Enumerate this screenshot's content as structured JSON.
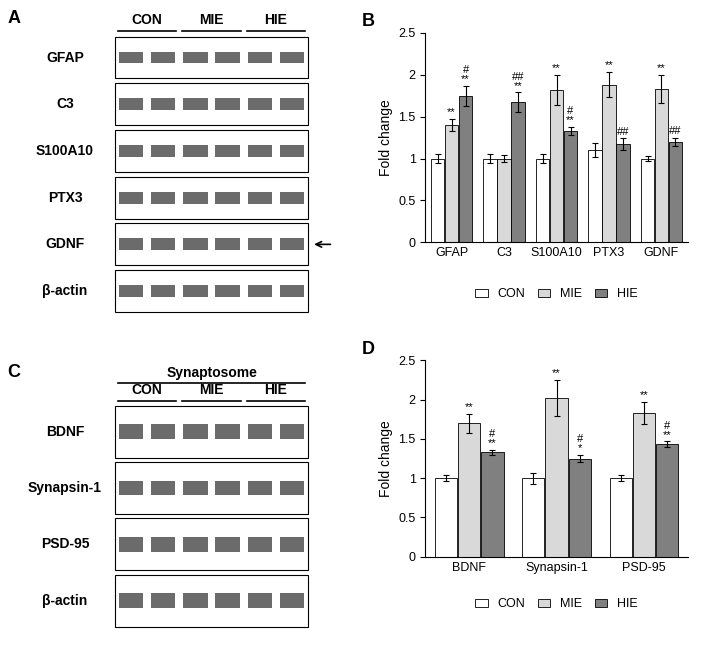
{
  "chart_data": [
    {
      "type": "bar",
      "panel": "B",
      "ylabel": "Fold change",
      "categories": [
        "GFAP",
        "C3",
        "S100A10",
        "PTX3",
        "GDNF"
      ],
      "ylim": [
        0,
        2.5
      ],
      "yticks": [
        0,
        0.5,
        1,
        1.5,
        2,
        2.5
      ],
      "legend": "lower center",
      "series": [
        {
          "name": "CON",
          "color": "#ffffff",
          "values": [
            1.0,
            1.0,
            1.0,
            1.1,
            1.0
          ],
          "errors": [
            0.05,
            0.05,
            0.05,
            0.08,
            0.03
          ],
          "marks": [
            null,
            null,
            null,
            null,
            null
          ]
        },
        {
          "name": "MIE",
          "color": "#d9d9d9",
          "values": [
            1.4,
            1.0,
            1.82,
            1.88,
            1.83
          ],
          "errors": [
            0.07,
            0.04,
            0.18,
            0.15,
            0.17
          ],
          "marks": [
            "**",
            null,
            "**",
            "**",
            "**"
          ]
        },
        {
          "name": "HIE",
          "color": "#808080",
          "values": [
            1.75,
            1.67,
            1.33,
            1.17,
            1.2
          ],
          "errors": [
            0.12,
            0.12,
            0.05,
            0.07,
            0.05
          ],
          "marks": [
            "#\n**",
            "##\n**",
            "#\n**",
            "##",
            "##"
          ]
        }
      ]
    },
    {
      "type": "bar",
      "panel": "D",
      "ylabel": "Fold change",
      "categories": [
        "BDNF",
        "Synapsin-1",
        "PSD-95"
      ],
      "ylim": [
        0,
        2.5
      ],
      "yticks": [
        0,
        0.5,
        1,
        1.5,
        2,
        2.5
      ],
      "legend": "lower center",
      "series": [
        {
          "name": "CON",
          "color": "#ffffff",
          "values": [
            1.0,
            1.0,
            1.0
          ],
          "errors": [
            0.04,
            0.07,
            0.04
          ],
          "marks": [
            null,
            null,
            null
          ]
        },
        {
          "name": "MIE",
          "color": "#d9d9d9",
          "values": [
            1.7,
            2.02,
            1.83
          ],
          "errors": [
            0.12,
            0.23,
            0.14
          ],
          "marks": [
            "**",
            "**",
            "**"
          ]
        },
        {
          "name": "HIE",
          "color": "#808080",
          "values": [
            1.33,
            1.25,
            1.43
          ],
          "errors": [
            0.03,
            0.05,
            0.04
          ],
          "marks": [
            "#\n**",
            "#\n*",
            "#\n**"
          ]
        }
      ]
    }
  ],
  "blots": [
    {
      "panel": "A",
      "title": null,
      "groups": [
        "CON",
        "MIE",
        "HIE"
      ],
      "rows": [
        "GFAP",
        "C3",
        "S100A10",
        "PTX3",
        "GDNF",
        "β-actin"
      ],
      "marked_row": "GDNF"
    },
    {
      "panel": "C",
      "title": "Synaptosome",
      "groups": [
        "CON",
        "MIE",
        "HIE"
      ],
      "rows": [
        "BDNF",
        "Synapsin-1",
        "PSD-95",
        "β-actin"
      ],
      "marked_row": null
    }
  ]
}
